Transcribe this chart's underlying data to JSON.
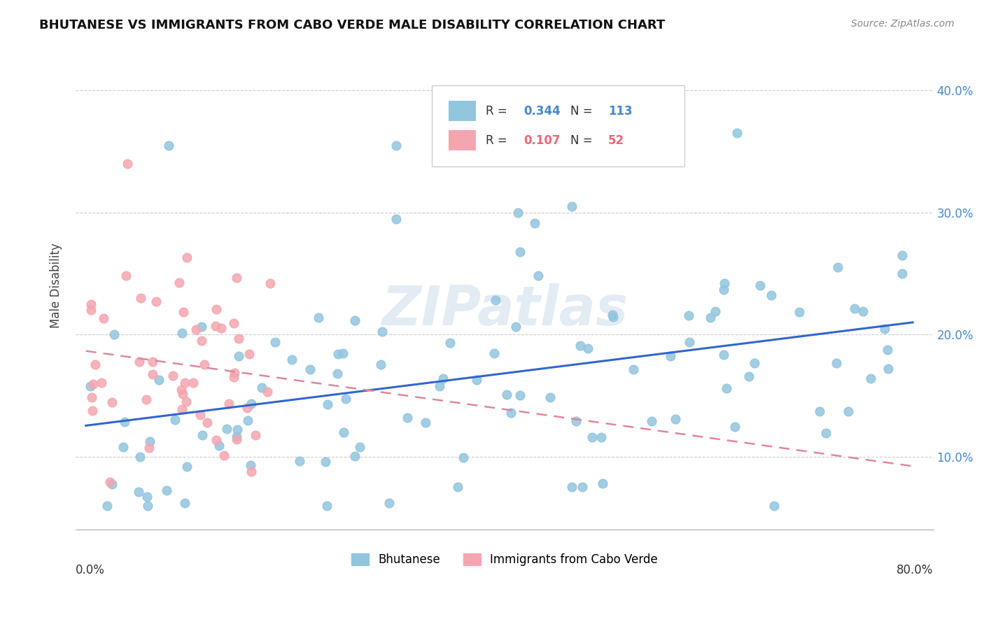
{
  "title": "BHUTANESE VS IMMIGRANTS FROM CABO VERDE MALE DISABILITY CORRELATION CHART",
  "source": "Source: ZipAtlas.com",
  "ylabel": "Male Disability",
  "color_blue": "#92C5DE",
  "color_pink": "#F4A6B0",
  "color_blue_text": "#4488CC",
  "color_pink_text": "#EE6677",
  "line_blue": "#3366CC",
  "line_pink": "#DD8899",
  "watermark": "ZIPatlas",
  "legend_r1": "0.344",
  "legend_n1": "113",
  "legend_r2": "0.107",
  "legend_n2": "52"
}
